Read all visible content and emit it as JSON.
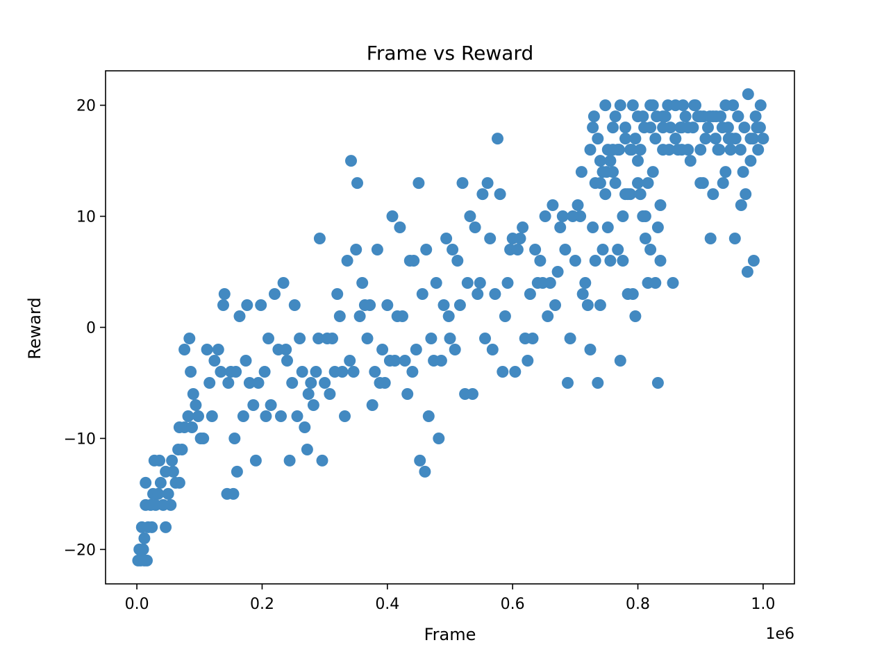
{
  "chart_data": {
    "type": "scatter",
    "title": "Frame vs Reward",
    "xlabel": "Frame",
    "ylabel": "Reward",
    "x_offset_label": "1e6",
    "xlim": [
      -0.05,
      1.05
    ],
    "ylim": [
      -23.1,
      23.1
    ],
    "x_ticks": [
      {
        "value": 0.0,
        "label": "0.0"
      },
      {
        "value": 0.2,
        "label": "0.2"
      },
      {
        "value": 0.4,
        "label": "0.4"
      },
      {
        "value": 0.6,
        "label": "0.6"
      },
      {
        "value": 0.8,
        "label": "0.8"
      },
      {
        "value": 1.0,
        "label": "1.0"
      }
    ],
    "y_ticks": [
      {
        "value": -20,
        "label": "−20"
      },
      {
        "value": -10,
        "label": "−10"
      },
      {
        "value": 0,
        "label": "0"
      },
      {
        "value": 10,
        "label": "10"
      },
      {
        "value": 20,
        "label": "20"
      }
    ],
    "grid": false,
    "marker_color": "#4289c1",
    "points": [
      [
        0.002,
        -21
      ],
      [
        0.006,
        -21
      ],
      [
        0.012,
        -21
      ],
      [
        0.016,
        -21
      ],
      [
        0.004,
        -20
      ],
      [
        0.01,
        -20
      ],
      [
        0.008,
        -18
      ],
      [
        0.018,
        -18
      ],
      [
        0.024,
        -18
      ],
      [
        0.012,
        -19
      ],
      [
        0.014,
        -16
      ],
      [
        0.022,
        -16
      ],
      [
        0.03,
        -16
      ],
      [
        0.046,
        -18
      ],
      [
        0.014,
        -14
      ],
      [
        0.026,
        -15
      ],
      [
        0.034,
        -15
      ],
      [
        0.038,
        -14
      ],
      [
        0.042,
        -16
      ],
      [
        0.05,
        -15
      ],
      [
        0.054,
        -16
      ],
      [
        0.058,
        -13
      ],
      [
        0.062,
        -14
      ],
      [
        0.068,
        -14
      ],
      [
        0.028,
        -12
      ],
      [
        0.036,
        -12
      ],
      [
        0.046,
        -13
      ],
      [
        0.056,
        -12
      ],
      [
        0.066,
        -11
      ],
      [
        0.072,
        -11
      ],
      [
        0.068,
        -9
      ],
      [
        0.076,
        -9
      ],
      [
        0.082,
        -8
      ],
      [
        0.088,
        -9
      ],
      [
        0.09,
        -6
      ],
      [
        0.094,
        -7
      ],
      [
        0.098,
        -8
      ],
      [
        0.102,
        -10
      ],
      [
        0.106,
        -10
      ],
      [
        0.086,
        -4
      ],
      [
        0.076,
        -2
      ],
      [
        0.084,
        -1
      ],
      [
        0.112,
        -2
      ],
      [
        0.116,
        -5
      ],
      [
        0.12,
        -8
      ],
      [
        0.124,
        -3
      ],
      [
        0.13,
        -2
      ],
      [
        0.134,
        -4
      ],
      [
        0.138,
        2
      ],
      [
        0.14,
        3
      ],
      [
        0.146,
        -5
      ],
      [
        0.15,
        -4
      ],
      [
        0.156,
        -10
      ],
      [
        0.158,
        -4
      ],
      [
        0.16,
        -13
      ],
      [
        0.164,
        1
      ],
      [
        0.17,
        -8
      ],
      [
        0.174,
        -3
      ],
      [
        0.176,
        2
      ],
      [
        0.18,
        -5
      ],
      [
        0.144,
        -15
      ],
      [
        0.154,
        -15
      ],
      [
        0.186,
        -7
      ],
      [
        0.19,
        -12
      ],
      [
        0.194,
        -5
      ],
      [
        0.198,
        2
      ],
      [
        0.204,
        -4
      ],
      [
        0.206,
        -8
      ],
      [
        0.21,
        -1
      ],
      [
        0.214,
        -7
      ],
      [
        0.22,
        3
      ],
      [
        0.226,
        -2
      ],
      [
        0.23,
        -8
      ],
      [
        0.234,
        4
      ],
      [
        0.238,
        -2
      ],
      [
        0.24,
        -3
      ],
      [
        0.244,
        -12
      ],
      [
        0.248,
        -5
      ],
      [
        0.252,
        2
      ],
      [
        0.256,
        -8
      ],
      [
        0.26,
        -1
      ],
      [
        0.264,
        -4
      ],
      [
        0.268,
        -9
      ],
      [
        0.272,
        -11
      ],
      [
        0.274,
        -6
      ],
      [
        0.278,
        -5
      ],
      [
        0.282,
        -7
      ],
      [
        0.286,
        -4
      ],
      [
        0.29,
        -1
      ],
      [
        0.292,
        8
      ],
      [
        0.296,
        -12
      ],
      [
        0.3,
        -5
      ],
      [
        0.304,
        -1
      ],
      [
        0.308,
        -6
      ],
      [
        0.312,
        -1
      ],
      [
        0.316,
        -4
      ],
      [
        0.32,
        3
      ],
      [
        0.324,
        1
      ],
      [
        0.328,
        -4
      ],
      [
        0.332,
        -8
      ],
      [
        0.336,
        6
      ],
      [
        0.34,
        -3
      ],
      [
        0.342,
        15
      ],
      [
        0.346,
        -4
      ],
      [
        0.35,
        7
      ],
      [
        0.352,
        13
      ],
      [
        0.356,
        1
      ],
      [
        0.36,
        4
      ],
      [
        0.364,
        2
      ],
      [
        0.368,
        -1
      ],
      [
        0.372,
        2
      ],
      [
        0.376,
        -7
      ],
      [
        0.38,
        -4
      ],
      [
        0.384,
        7
      ],
      [
        0.388,
        -5
      ],
      [
        0.392,
        -2
      ],
      [
        0.396,
        -5
      ],
      [
        0.4,
        2
      ],
      [
        0.404,
        -3
      ],
      [
        0.408,
        10
      ],
      [
        0.412,
        -3
      ],
      [
        0.416,
        1
      ],
      [
        0.42,
        9
      ],
      [
        0.424,
        1
      ],
      [
        0.428,
        -3
      ],
      [
        0.432,
        -6
      ],
      [
        0.436,
        6
      ],
      [
        0.44,
        -4
      ],
      [
        0.442,
        6
      ],
      [
        0.446,
        -2
      ],
      [
        0.45,
        13
      ],
      [
        0.452,
        -12
      ],
      [
        0.456,
        3
      ],
      [
        0.46,
        -13
      ],
      [
        0.462,
        7
      ],
      [
        0.466,
        -8
      ],
      [
        0.47,
        -1
      ],
      [
        0.474,
        -3
      ],
      [
        0.478,
        4
      ],
      [
        0.482,
        -10
      ],
      [
        0.486,
        -3
      ],
      [
        0.49,
        2
      ],
      [
        0.494,
        8
      ],
      [
        0.498,
        1
      ],
      [
        0.5,
        -1
      ],
      [
        0.504,
        7
      ],
      [
        0.508,
        -2
      ],
      [
        0.512,
        6
      ],
      [
        0.516,
        2
      ],
      [
        0.52,
        13
      ],
      [
        0.524,
        -6
      ],
      [
        0.528,
        4
      ],
      [
        0.532,
        10
      ],
      [
        0.536,
        -6
      ],
      [
        0.54,
        9
      ],
      [
        0.544,
        3
      ],
      [
        0.548,
        4
      ],
      [
        0.552,
        12
      ],
      [
        0.556,
        -1
      ],
      [
        0.56,
        13
      ],
      [
        0.564,
        8
      ],
      [
        0.568,
        -2
      ],
      [
        0.572,
        3
      ],
      [
        0.576,
        17
      ],
      [
        0.58,
        12
      ],
      [
        0.584,
        -4
      ],
      [
        0.588,
        1
      ],
      [
        0.592,
        4
      ],
      [
        0.596,
        7
      ],
      [
        0.6,
        8
      ],
      [
        0.604,
        -4
      ],
      [
        0.608,
        7
      ],
      [
        0.612,
        8
      ],
      [
        0.616,
        9
      ],
      [
        0.62,
        -1
      ],
      [
        0.624,
        -3
      ],
      [
        0.628,
        3
      ],
      [
        0.632,
        -1
      ],
      [
        0.636,
        7
      ],
      [
        0.64,
        4
      ],
      [
        0.644,
        6
      ],
      [
        0.648,
        4
      ],
      [
        0.652,
        10
      ],
      [
        0.656,
        1
      ],
      [
        0.66,
        4
      ],
      [
        0.664,
        11
      ],
      [
        0.668,
        2
      ],
      [
        0.672,
        5
      ],
      [
        0.676,
        9
      ],
      [
        0.68,
        10
      ],
      [
        0.684,
        7
      ],
      [
        0.688,
        -5
      ],
      [
        0.692,
        -1
      ],
      [
        0.696,
        10
      ],
      [
        0.7,
        6
      ],
      [
        0.704,
        11
      ],
      [
        0.708,
        10
      ],
      [
        0.712,
        3
      ],
      [
        0.716,
        4
      ],
      [
        0.72,
        2
      ],
      [
        0.724,
        -2
      ],
      [
        0.728,
        9
      ],
      [
        0.732,
        6
      ],
      [
        0.736,
        -5
      ],
      [
        0.74,
        2
      ],
      [
        0.744,
        7
      ],
      [
        0.748,
        12
      ],
      [
        0.752,
        9
      ],
      [
        0.756,
        6
      ],
      [
        0.76,
        14
      ],
      [
        0.764,
        13
      ],
      [
        0.768,
        7
      ],
      [
        0.772,
        -3
      ],
      [
        0.776,
        6
      ],
      [
        0.78,
        12
      ],
      [
        0.784,
        3
      ],
      [
        0.788,
        12
      ],
      [
        0.792,
        3
      ],
      [
        0.796,
        1
      ],
      [
        0.8,
        15
      ],
      [
        0.804,
        16
      ],
      [
        0.808,
        10
      ],
      [
        0.812,
        8
      ],
      [
        0.816,
        4
      ],
      [
        0.82,
        7
      ],
      [
        0.824,
        14
      ],
      [
        0.828,
        4
      ],
      [
        0.832,
        -5
      ],
      [
        0.836,
        6
      ],
      [
        0.84,
        19
      ],
      [
        0.724,
        16
      ],
      [
        0.728,
        18
      ],
      [
        0.732,
        13
      ],
      [
        0.736,
        17
      ],
      [
        0.74,
        15
      ],
      [
        0.744,
        14
      ],
      [
        0.748,
        20
      ],
      [
        0.752,
        16
      ],
      [
        0.756,
        15
      ],
      [
        0.76,
        18
      ],
      [
        0.764,
        19
      ],
      [
        0.768,
        16
      ],
      [
        0.772,
        20
      ],
      [
        0.776,
        10
      ],
      [
        0.78,
        18
      ],
      [
        0.784,
        12
      ],
      [
        0.788,
        16
      ],
      [
        0.792,
        20
      ],
      [
        0.796,
        17
      ],
      [
        0.8,
        13
      ],
      [
        0.804,
        12
      ],
      [
        0.808,
        19
      ],
      [
        0.812,
        10
      ],
      [
        0.816,
        13
      ],
      [
        0.82,
        18
      ],
      [
        0.824,
        20
      ],
      [
        0.828,
        17
      ],
      [
        0.832,
        9
      ],
      [
        0.836,
        11
      ],
      [
        0.84,
        16
      ],
      [
        0.844,
        19
      ],
      [
        0.848,
        20
      ],
      [
        0.852,
        18
      ],
      [
        0.856,
        4
      ],
      [
        0.86,
        17
      ],
      [
        0.864,
        16
      ],
      [
        0.868,
        18
      ],
      [
        0.872,
        20
      ],
      [
        0.876,
        19
      ],
      [
        0.88,
        16
      ],
      [
        0.884,
        15
      ],
      [
        0.888,
        18
      ],
      [
        0.892,
        20
      ],
      [
        0.896,
        19
      ],
      [
        0.9,
        16
      ],
      [
        0.904,
        13
      ],
      [
        0.908,
        17
      ],
      [
        0.912,
        18
      ],
      [
        0.916,
        8
      ],
      [
        0.92,
        12
      ],
      [
        0.924,
        17
      ],
      [
        0.928,
        16
      ],
      [
        0.932,
        19
      ],
      [
        0.936,
        13
      ],
      [
        0.94,
        14
      ],
      [
        0.944,
        18
      ],
      [
        0.948,
        16
      ],
      [
        0.952,
        20
      ],
      [
        0.956,
        17
      ],
      [
        0.96,
        19
      ],
      [
        0.964,
        16
      ],
      [
        0.968,
        14
      ],
      [
        0.972,
        12
      ],
      [
        0.976,
        21
      ],
      [
        0.98,
        15
      ],
      [
        0.984,
        17
      ],
      [
        0.988,
        19
      ],
      [
        0.992,
        16
      ],
      [
        0.996,
        20
      ],
      [
        1.0,
        17
      ],
      [
        0.905,
        19
      ],
      [
        0.915,
        19
      ],
      [
        0.925,
        19
      ],
      [
        0.935,
        18
      ],
      [
        0.945,
        17
      ],
      [
        0.955,
        8
      ],
      [
        0.965,
        11
      ],
      [
        0.975,
        5
      ],
      [
        0.985,
        6
      ],
      [
        0.995,
        18
      ],
      [
        0.71,
        14
      ],
      [
        0.73,
        19
      ],
      [
        0.75,
        14
      ],
      [
        0.77,
        16
      ],
      [
        0.79,
        16
      ],
      [
        0.81,
        18
      ],
      [
        0.83,
        19
      ],
      [
        0.85,
        16
      ],
      [
        0.87,
        18
      ],
      [
        0.89,
        20
      ],
      [
        0.74,
        13
      ],
      [
        0.76,
        16
      ],
      [
        0.78,
        17
      ],
      [
        0.8,
        19
      ],
      [
        0.82,
        20
      ],
      [
        0.84,
        18
      ],
      [
        0.86,
        20
      ],
      [
        0.88,
        18
      ],
      [
        0.9,
        19
      ],
      [
        0.92,
        19
      ],
      [
        0.86,
        17
      ],
      [
        0.87,
        16
      ],
      [
        0.9,
        13
      ],
      [
        0.93,
        16
      ],
      [
        0.95,
        17
      ],
      [
        0.97,
        18
      ],
      [
        0.99,
        18
      ],
      [
        0.94,
        20
      ],
      [
        0.96,
        19
      ],
      [
        0.98,
        17
      ]
    ]
  }
}
